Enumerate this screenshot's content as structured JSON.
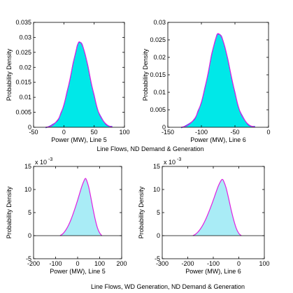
{
  "colors": {
    "fill_dark": "#00e8e8",
    "fill_light": "#a9ecf6",
    "curve": "#e020e0",
    "data_line": "#3050ff"
  },
  "captions": {
    "top": "Line Flows, ND Demand & Generation",
    "bottom": "Line Flows, WD Generation, ND Demand & Generation"
  },
  "chart_data": [
    {
      "type": "area",
      "title": "",
      "xlabel": "Power (MW), Line 5",
      "ylabel": "Probability Density",
      "xlim": [
        -50,
        100
      ],
      "ylim": [
        0,
        0.035
      ],
      "xticks": [
        -50,
        0,
        50,
        100
      ],
      "yticks": [
        0,
        0.005,
        0.01,
        0.015,
        0.02,
        0.025,
        0.03,
        0.035
      ],
      "xtick_labels": [
        "-50",
        "0",
        "50",
        "100"
      ],
      "ytick_labels": [
        "0",
        "0.005",
        "0.01",
        "0.015",
        "0.02",
        "0.025",
        "0.03",
        "0.035"
      ],
      "y_exponent": "",
      "fill": "dark",
      "series": [
        {
          "x": [
            -30,
            -20,
            -10,
            -5,
            0,
            5,
            10,
            15,
            20,
            22,
            25,
            30,
            35,
            40,
            45,
            50,
            55,
            60,
            70,
            80
          ],
          "y": [
            0,
            0.0005,
            0.0025,
            0.0045,
            0.0075,
            0.0115,
            0.016,
            0.021,
            0.0255,
            0.027,
            0.0285,
            0.0275,
            0.0245,
            0.02,
            0.015,
            0.0105,
            0.0065,
            0.0037,
            0.001,
            0
          ]
        }
      ]
    },
    {
      "type": "area",
      "title": "",
      "xlabel": "Power (MW), Line 6",
      "ylabel": "Probability Density",
      "xlim": [
        -150,
        0
      ],
      "ylim": [
        0,
        0.03
      ],
      "xticks": [
        -150,
        -100,
        -50,
        0
      ],
      "yticks": [
        0,
        0.005,
        0.01,
        0.015,
        0.02,
        0.025,
        0.03
      ],
      "xtick_labels": [
        "-150",
        "-100",
        "-50",
        "0"
      ],
      "ytick_labels": [
        "0",
        "0.005",
        "0.01",
        "0.015",
        "0.02",
        "0.025",
        "0.03"
      ],
      "y_exponent": "",
      "fill": "dark",
      "series": [
        {
          "x": [
            -130,
            -120,
            -110,
            -105,
            -100,
            -95,
            -90,
            -85,
            -80,
            -77,
            -75,
            -70,
            -65,
            -60,
            -55,
            -50,
            -45,
            -40,
            -30,
            -20
          ],
          "y": [
            0,
            0.0006,
            0.0025,
            0.0045,
            0.0072,
            0.011,
            0.0155,
            0.0205,
            0.0245,
            0.0262,
            0.0268,
            0.0258,
            0.023,
            0.0188,
            0.0142,
            0.0098,
            0.006,
            0.0034,
            0.0008,
            0
          ]
        }
      ]
    },
    {
      "type": "area",
      "title": "",
      "xlabel": "Power (MW), Line 5",
      "ylabel": "Probability Density",
      "xlim": [
        -200,
        200
      ],
      "ylim": [
        -5,
        15
      ],
      "xticks": [
        -200,
        -100,
        0,
        100,
        200
      ],
      "yticks": [
        -5,
        0,
        5,
        10,
        15
      ],
      "xtick_labels": [
        "-200",
        "-100",
        "0",
        "100",
        "200"
      ],
      "ytick_labels": [
        "-5",
        "0",
        "5",
        "10",
        "15"
      ],
      "y_exponent": "x 10",
      "y_exponent_power": "-3",
      "fill": "light",
      "series": [
        {
          "x": [
            -80,
            -70,
            -60,
            -50,
            -40,
            -30,
            -20,
            -10,
            0,
            10,
            20,
            30,
            35,
            40,
            50,
            60,
            70,
            80,
            90,
            100,
            110
          ],
          "y": [
            0,
            0.3,
            0.8,
            1.5,
            2.4,
            3.5,
            4.8,
            6.2,
            7.7,
            9.3,
            10.8,
            12.0,
            12.4,
            12.1,
            10.6,
            8.3,
            5.8,
            3.5,
            1.7,
            0.6,
            0
          ]
        }
      ]
    },
    {
      "type": "area",
      "title": "",
      "xlabel": "Power (MW), Line 6",
      "ylabel": "Probability Density",
      "xlim": [
        -300,
        100
      ],
      "ylim": [
        -5,
        15
      ],
      "xticks": [
        -300,
        -200,
        -100,
        0,
        100
      ],
      "yticks": [
        -5,
        0,
        5,
        10,
        15
      ],
      "xtick_labels": [
        "-300",
        "-200",
        "-100",
        "0",
        "100"
      ],
      "ytick_labels": [
        "-5",
        "0",
        "5",
        "10",
        "15"
      ],
      "y_exponent": "x 10",
      "y_exponent_power": "-3",
      "fill": "light",
      "series": [
        {
          "x": [
            -180,
            -170,
            -160,
            -150,
            -140,
            -130,
            -120,
            -110,
            -100,
            -90,
            -80,
            -70,
            -65,
            -60,
            -50,
            -40,
            -30,
            -20,
            -10,
            0,
            10
          ],
          "y": [
            0,
            0.3,
            0.8,
            1.5,
            2.4,
            3.5,
            4.8,
            6.2,
            7.7,
            9.3,
            10.8,
            11.9,
            12.2,
            11.9,
            10.4,
            8.1,
            5.6,
            3.4,
            1.6,
            0.5,
            0
          ]
        }
      ]
    }
  ]
}
